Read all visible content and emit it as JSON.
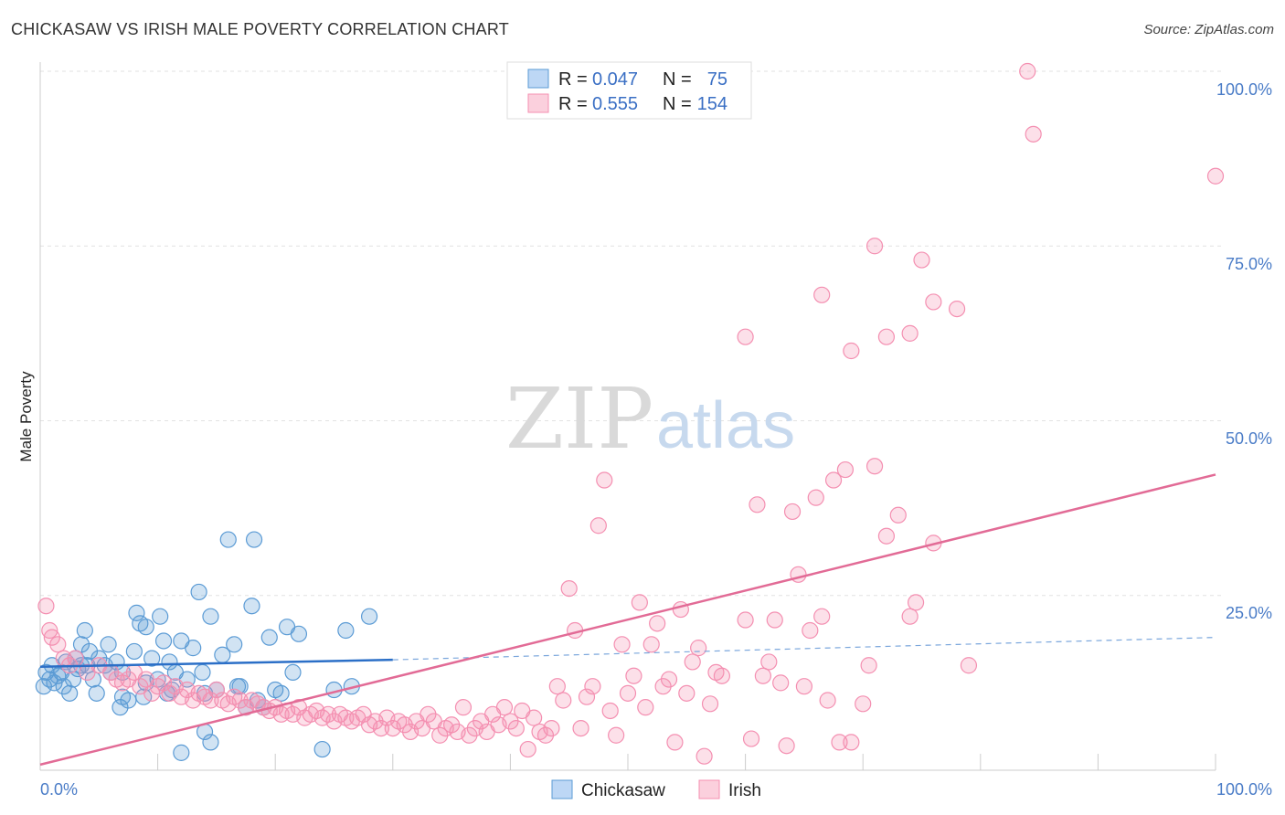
{
  "header": {
    "title": "CHICKASAW VS IRISH MALE POVERTY CORRELATION CHART",
    "source": "Source: ZipAtlas.com"
  },
  "watermark": {
    "zip": "ZIP",
    "atlas": "atlas"
  },
  "legend": {
    "rows": [
      {
        "r_label": "R =",
        "r_value": "0.047",
        "n_label": "N =",
        "n_value": "75",
        "color": "#5b9bd5"
      },
      {
        "r_label": "R =",
        "r_value": "0.555",
        "n_label": "N =",
        "n_value": "154",
        "color": "#f48fb1"
      }
    ]
  },
  "chart_data": {
    "type": "scatter",
    "title": "CHICKASAW VS IRISH MALE POVERTY CORRELATION CHART",
    "xlabel": "",
    "ylabel": "Male Poverty",
    "xlim": [
      0,
      100
    ],
    "ylim": [
      0,
      100
    ],
    "x_tick_labels": [
      "0.0%",
      "100.0%"
    ],
    "y_tick_labels": [
      "25.0%",
      "50.0%",
      "75.0%",
      "100.0%"
    ],
    "y_ticks": [
      25,
      50,
      75,
      100
    ],
    "grid": true,
    "legend_position": "top-center",
    "series": [
      {
        "name": "Chickasaw",
        "color": "#5b9bd5",
        "trend": {
          "x": [
            0,
            30
          ],
          "y": [
            14.8,
            15.8
          ],
          "dashed_to": [
            100,
            19.0
          ]
        },
        "points": [
          [
            0.3,
            12
          ],
          [
            0.5,
            14
          ],
          [
            0.8,
            13
          ],
          [
            1,
            15
          ],
          [
            1.2,
            12.5
          ],
          [
            1.5,
            13.5
          ],
          [
            1.8,
            14
          ],
          [
            2,
            12
          ],
          [
            2.2,
            15.5
          ],
          [
            2.5,
            11
          ],
          [
            2.8,
            13
          ],
          [
            3,
            16
          ],
          [
            3.2,
            14.5
          ],
          [
            3.5,
            18
          ],
          [
            3.8,
            20
          ],
          [
            4,
            15
          ],
          [
            4.2,
            17
          ],
          [
            4.5,
            13
          ],
          [
            4.8,
            11
          ],
          [
            5,
            16
          ],
          [
            5.5,
            15
          ],
          [
            5.8,
            18
          ],
          [
            6,
            14
          ],
          [
            6.5,
            15.5
          ],
          [
            6.8,
            9
          ],
          [
            7,
            14
          ],
          [
            7.5,
            10
          ],
          [
            8,
            17
          ],
          [
            8.2,
            22.5
          ],
          [
            8.5,
            21
          ],
          [
            8.8,
            10.5
          ],
          [
            9,
            20.5
          ],
          [
            9.5,
            16
          ],
          [
            10,
            13
          ],
          [
            10.2,
            22
          ],
          [
            10.5,
            18.5
          ],
          [
            10.8,
            11
          ],
          [
            11,
            15.5
          ],
          [
            11.2,
            11.5
          ],
          [
            11.5,
            14
          ],
          [
            12,
            18.5
          ],
          [
            12.5,
            13
          ],
          [
            13,
            17.5
          ],
          [
            13.5,
            25.5
          ],
          [
            13.8,
            14
          ],
          [
            14,
            11
          ],
          [
            14.5,
            22
          ],
          [
            15,
            11.5
          ],
          [
            15.5,
            16.5
          ],
          [
            16,
            33
          ],
          [
            16.5,
            18
          ],
          [
            16.8,
            12
          ],
          [
            17,
            12
          ],
          [
            17.5,
            9
          ],
          [
            18,
            23.5
          ],
          [
            18.2,
            33
          ],
          [
            18.5,
            10
          ],
          [
            19,
            9
          ],
          [
            19.5,
            19
          ],
          [
            20,
            11.5
          ],
          [
            20.5,
            11
          ],
          [
            21,
            20.5
          ],
          [
            21.5,
            14
          ],
          [
            22,
            19.5
          ],
          [
            24,
            3
          ],
          [
            25,
            11.5
          ],
          [
            26,
            20
          ],
          [
            26.5,
            12
          ],
          [
            28,
            22
          ],
          [
            12,
            2.5
          ],
          [
            14.5,
            4
          ],
          [
            14,
            5.5
          ],
          [
            9,
            12.5
          ],
          [
            7,
            10.5
          ],
          [
            3.5,
            15
          ]
        ]
      },
      {
        "name": "Irish",
        "color": "#f48fb1",
        "trend": {
          "x": [
            0,
            100
          ],
          "y": [
            0.8,
            42.3
          ]
        },
        "points": [
          [
            0.5,
            23.5
          ],
          [
            1,
            19
          ],
          [
            1.5,
            18
          ],
          [
            2,
            16
          ],
          [
            2.5,
            15
          ],
          [
            3,
            16
          ],
          [
            4,
            14
          ],
          [
            5,
            15
          ],
          [
            6,
            14
          ],
          [
            6.5,
            13
          ],
          [
            7,
            12.5
          ],
          [
            7.5,
            13
          ],
          [
            8,
            14
          ],
          [
            8.5,
            12
          ],
          [
            9,
            13
          ],
          [
            9.5,
            11
          ],
          [
            10,
            12
          ],
          [
            10.5,
            12.5
          ],
          [
            11,
            11
          ],
          [
            11.5,
            12
          ],
          [
            12,
            10.5
          ],
          [
            12.5,
            11.5
          ],
          [
            13,
            10
          ],
          [
            13.5,
            11
          ],
          [
            14,
            10.5
          ],
          [
            14.5,
            10
          ],
          [
            15,
            11.5
          ],
          [
            15.5,
            10
          ],
          [
            16,
            9.5
          ],
          [
            16.5,
            10.5
          ],
          [
            17,
            10
          ],
          [
            17.5,
            9
          ],
          [
            18,
            10
          ],
          [
            18.5,
            9.5
          ],
          [
            19,
            9
          ],
          [
            19.5,
            8.5
          ],
          [
            20,
            9
          ],
          [
            20.5,
            8
          ],
          [
            21,
            8.5
          ],
          [
            21.5,
            8
          ],
          [
            22,
            9
          ],
          [
            22.5,
            7.5
          ],
          [
            23,
            8
          ],
          [
            23.5,
            8.5
          ],
          [
            24,
            7.5
          ],
          [
            24.5,
            8
          ],
          [
            25,
            7
          ],
          [
            25.5,
            8
          ],
          [
            26,
            7.5
          ],
          [
            26.5,
            7
          ],
          [
            27,
            7.5
          ],
          [
            27.5,
            8
          ],
          [
            28,
            6.5
          ],
          [
            28.5,
            7
          ],
          [
            29,
            6
          ],
          [
            29.5,
            7.5
          ],
          [
            30,
            6
          ],
          [
            30.5,
            7
          ],
          [
            31,
            6.5
          ],
          [
            31.5,
            5.5
          ],
          [
            32,
            7
          ],
          [
            32.5,
            6
          ],
          [
            33,
            8
          ],
          [
            33.5,
            7
          ],
          [
            34,
            5
          ],
          [
            34.5,
            6
          ],
          [
            35,
            6.5
          ],
          [
            35.5,
            5.5
          ],
          [
            36,
            9
          ],
          [
            36.5,
            5
          ],
          [
            37,
            6
          ],
          [
            37.5,
            7
          ],
          [
            38,
            5.5
          ],
          [
            38.5,
            8
          ],
          [
            39,
            6.5
          ],
          [
            39.5,
            9
          ],
          [
            40,
            7
          ],
          [
            40.5,
            6
          ],
          [
            41,
            8.5
          ],
          [
            41.5,
            3
          ],
          [
            42,
            7.5
          ],
          [
            42.5,
            5.5
          ],
          [
            43,
            5
          ],
          [
            43.5,
            6
          ],
          [
            44,
            12
          ],
          [
            44.5,
            10
          ],
          [
            45,
            26
          ],
          [
            45.5,
            20
          ],
          [
            46,
            6
          ],
          [
            46.5,
            10.5
          ],
          [
            47,
            12
          ],
          [
            47.5,
            35
          ],
          [
            48,
            41.5
          ],
          [
            48.5,
            8.5
          ],
          [
            49,
            5
          ],
          [
            49.5,
            18
          ],
          [
            50,
            11
          ],
          [
            50.5,
            13.5
          ],
          [
            51,
            24
          ],
          [
            51.5,
            9
          ],
          [
            52,
            18
          ],
          [
            52.5,
            21
          ],
          [
            53,
            12
          ],
          [
            53.5,
            13
          ],
          [
            54,
            4
          ],
          [
            54.5,
            23
          ],
          [
            55,
            11
          ],
          [
            55.5,
            15.5
          ],
          [
            56,
            17.5
          ],
          [
            56.5,
            2
          ],
          [
            57,
            9.5
          ],
          [
            57.5,
            14
          ],
          [
            58,
            13.5
          ],
          [
            60,
            21.5
          ],
          [
            60.5,
            4.5
          ],
          [
            61,
            38
          ],
          [
            61.5,
            13.5
          ],
          [
            62,
            15.5
          ],
          [
            62.5,
            21.5
          ],
          [
            63,
            12.5
          ],
          [
            63.5,
            3.5
          ],
          [
            64,
            37
          ],
          [
            64.5,
            28
          ],
          [
            65,
            12
          ],
          [
            65.5,
            20
          ],
          [
            66,
            39
          ],
          [
            66.5,
            22
          ],
          [
            67,
            10
          ],
          [
            67.5,
            41.5
          ],
          [
            68,
            4
          ],
          [
            68.5,
            43
          ],
          [
            69,
            4
          ],
          [
            70,
            9.5
          ],
          [
            70.5,
            15
          ],
          [
            71,
            43.5
          ],
          [
            72,
            33.5
          ],
          [
            73,
            36.5
          ],
          [
            74,
            22
          ],
          [
            74.5,
            24
          ],
          [
            76,
            32.5
          ],
          [
            79,
            15
          ],
          [
            60,
            62
          ],
          [
            66.5,
            68
          ],
          [
            69,
            60
          ],
          [
            72,
            62
          ],
          [
            71,
            75
          ],
          [
            74,
            62.5
          ],
          [
            76,
            67
          ],
          [
            78,
            66
          ],
          [
            84,
            100
          ],
          [
            84.5,
            91
          ],
          [
            100,
            85
          ],
          [
            75,
            73
          ],
          [
            0.8,
            20
          ]
        ]
      }
    ]
  }
}
